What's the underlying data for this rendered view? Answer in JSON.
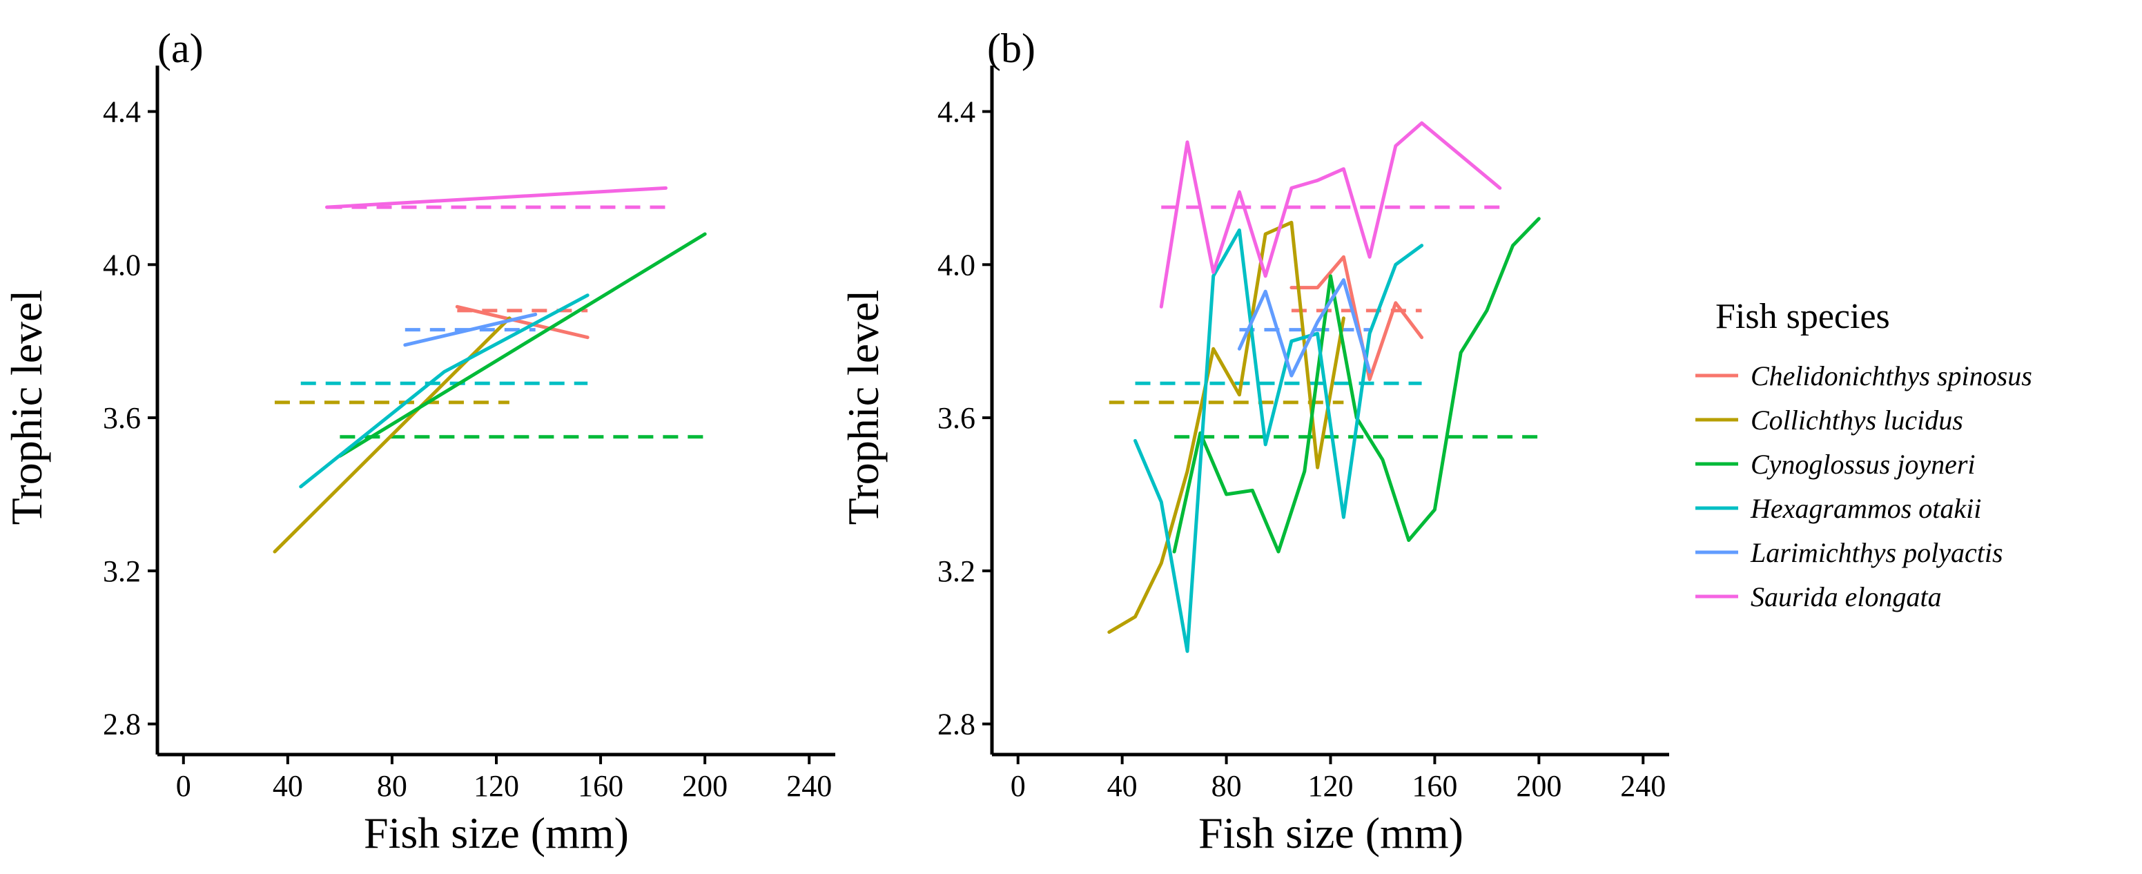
{
  "chart_data": [
    {
      "type": "line",
      "panel_label": "(a)",
      "xlabel": "Fish size (mm)",
      "ylabel": "Trophic level",
      "xlim": [
        -10,
        250
      ],
      "ylim": [
        2.72,
        4.52
      ],
      "xticks": [
        0,
        40,
        80,
        120,
        160,
        200,
        240
      ],
      "yticks": [
        2.8,
        3.2,
        3.6,
        4.0,
        4.4
      ],
      "xtick_labels": [
        "0",
        "40",
        "80",
        "120",
        "160",
        "200",
        "240"
      ],
      "ytick_labels": [
        "2.8",
        "3.2",
        "3.6",
        "4.0",
        "4.4"
      ],
      "series": [
        {
          "name": "Chelidonichthys spinosus",
          "color": "#f8766d",
          "points": [
            [
              105,
              3.89
            ],
            [
              155,
              3.81
            ]
          ],
          "mean": {
            "y": 3.88,
            "x_range": [
              105,
              155
            ]
          }
        },
        {
          "name": "Collichthys lucidus",
          "color": "#b79f00",
          "points": [
            [
              35,
              3.25
            ],
            [
              125,
              3.86
            ]
          ],
          "mean": {
            "y": 3.64,
            "x_range": [
              35,
              125
            ]
          }
        },
        {
          "name": "Cynoglossus joyneri",
          "color": "#00ba38",
          "points": [
            [
              60,
              3.5
            ],
            [
              200,
              4.08
            ]
          ],
          "mean": {
            "y": 3.55,
            "x_range": [
              60,
              200
            ]
          }
        },
        {
          "name": "Hexagrammos otakii",
          "color": "#00bfc4",
          "points": [
            [
              45,
              3.42
            ],
            [
              100,
              3.72
            ],
            [
              155,
              3.92
            ]
          ],
          "mean": {
            "y": 3.69,
            "x_range": [
              45,
              155
            ]
          }
        },
        {
          "name": "Larimichthys polyactis",
          "color": "#619cff",
          "points": [
            [
              85,
              3.79
            ],
            [
              135,
              3.87
            ]
          ],
          "mean": {
            "y": 3.83,
            "x_range": [
              85,
              135
            ]
          }
        },
        {
          "name": "Saurida elongata",
          "color": "#f564e3",
          "points": [
            [
              55,
              4.15
            ],
            [
              185,
              4.2
            ]
          ],
          "mean": {
            "y": 4.15,
            "x_range": [
              55,
              185
            ]
          }
        }
      ]
    },
    {
      "type": "line",
      "panel_label": "(b)",
      "xlabel": "Fish size (mm)",
      "ylabel": "Trophic level",
      "xlim": [
        -10,
        250
      ],
      "ylim": [
        2.72,
        4.52
      ],
      "xticks": [
        0,
        40,
        80,
        120,
        160,
        200,
        240
      ],
      "yticks": [
        2.8,
        3.2,
        3.6,
        4.0,
        4.4
      ],
      "xtick_labels": [
        "0",
        "40",
        "80",
        "120",
        "160",
        "200",
        "240"
      ],
      "ytick_labels": [
        "2.8",
        "3.2",
        "3.6",
        "4.0",
        "4.4"
      ],
      "series": [
        {
          "name": "Chelidonichthys spinosus",
          "color": "#f8766d",
          "points": [
            [
              105,
              3.94
            ],
            [
              115,
              3.94
            ],
            [
              125,
              4.02
            ],
            [
              135,
              3.7
            ],
            [
              145,
              3.9
            ],
            [
              155,
              3.81
            ]
          ],
          "mean": {
            "y": 3.88,
            "x_range": [
              105,
              155
            ]
          }
        },
        {
          "name": "Collichthys lucidus",
          "color": "#b79f00",
          "points": [
            [
              35,
              3.04
            ],
            [
              45,
              3.08
            ],
            [
              55,
              3.22
            ],
            [
              65,
              3.46
            ],
            [
              75,
              3.78
            ],
            [
              85,
              3.66
            ],
            [
              95,
              4.08
            ],
            [
              105,
              4.11
            ],
            [
              115,
              3.47
            ],
            [
              125,
              3.86
            ]
          ],
          "mean": {
            "y": 3.64,
            "x_range": [
              35,
              125
            ]
          }
        },
        {
          "name": "Cynoglossus joyneri",
          "color": "#00ba38",
          "points": [
            [
              60,
              3.25
            ],
            [
              70,
              3.56
            ],
            [
              80,
              3.4
            ],
            [
              90,
              3.41
            ],
            [
              100,
              3.25
            ],
            [
              110,
              3.46
            ],
            [
              120,
              3.97
            ],
            [
              130,
              3.6
            ],
            [
              140,
              3.49
            ],
            [
              150,
              3.28
            ],
            [
              160,
              3.36
            ],
            [
              170,
              3.77
            ],
            [
              180,
              3.88
            ],
            [
              190,
              4.05
            ],
            [
              200,
              4.12
            ]
          ],
          "mean": {
            "y": 3.55,
            "x_range": [
              60,
              200
            ]
          }
        },
        {
          "name": "Hexagrammos otakii",
          "color": "#00bfc4",
          "points": [
            [
              45,
              3.54
            ],
            [
              55,
              3.38
            ],
            [
              65,
              2.99
            ],
            [
              75,
              3.97
            ],
            [
              85,
              4.09
            ],
            [
              95,
              3.53
            ],
            [
              105,
              3.8
            ],
            [
              115,
              3.82
            ],
            [
              125,
              3.34
            ],
            [
              135,
              3.82
            ],
            [
              145,
              4.0
            ],
            [
              155,
              4.05
            ]
          ],
          "mean": {
            "y": 3.69,
            "x_range": [
              45,
              155
            ]
          }
        },
        {
          "name": "Larimichthys polyactis",
          "color": "#619cff",
          "points": [
            [
              85,
              3.78
            ],
            [
              95,
              3.93
            ],
            [
              105,
              3.71
            ],
            [
              115,
              3.85
            ],
            [
              125,
              3.96
            ],
            [
              135,
              3.72
            ]
          ],
          "mean": {
            "y": 3.83,
            "x_range": [
              85,
              135
            ]
          }
        },
        {
          "name": "Saurida elongata",
          "color": "#f564e3",
          "points": [
            [
              55,
              3.89
            ],
            [
              65,
              4.32
            ],
            [
              75,
              3.98
            ],
            [
              85,
              4.19
            ],
            [
              95,
              3.97
            ],
            [
              105,
              4.2
            ],
            [
              115,
              4.22
            ],
            [
              125,
              4.25
            ],
            [
              135,
              4.02
            ],
            [
              145,
              4.31
            ],
            [
              155,
              4.37
            ],
            [
              185,
              4.2
            ]
          ],
          "mean": {
            "y": 4.15,
            "x_range": [
              55,
              185
            ]
          }
        }
      ]
    }
  ],
  "legend": {
    "title": "Fish species",
    "position": "right",
    "items": [
      {
        "label": "Chelidonichthys spinosus",
        "color": "#f8766d"
      },
      {
        "label": "Collichthys lucidus",
        "color": "#b79f00"
      },
      {
        "label": "Cynoglossus joyneri",
        "color": "#00ba38"
      },
      {
        "label": "Hexagrammos otakii",
        "color": "#00bfc4"
      },
      {
        "label": "Larimichthys polyactis",
        "color": "#619cff"
      },
      {
        "label": "Saurida elongata",
        "color": "#f564e3"
      }
    ]
  }
}
